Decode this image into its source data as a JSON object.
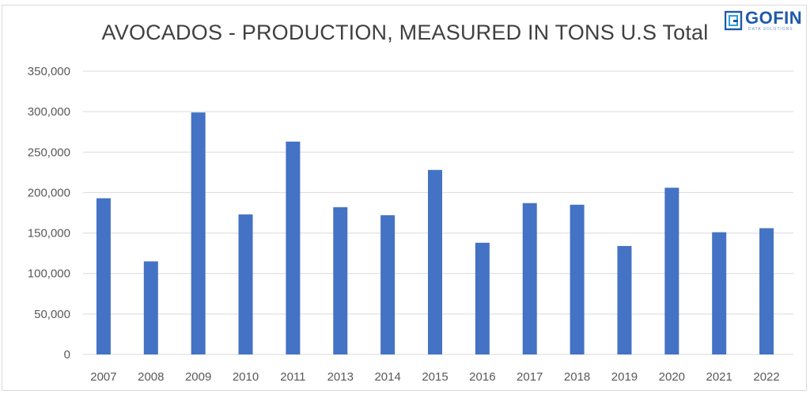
{
  "brand": {
    "logo_text": "GOFIN",
    "logo_sub": "DATA SOLUTIONS",
    "logo_icon": "gofin-logo-icon"
  },
  "colors": {
    "bar": "#4472c4",
    "grid": "#d9d9d9",
    "text": "#595959",
    "title": "#404040"
  },
  "chart_data": {
    "type": "bar",
    "title": "AVOCADOS - PRODUCTION, MEASURED IN TONS U.S Total",
    "xlabel": "",
    "ylabel": "",
    "categories": [
      "2007",
      "2008",
      "2009",
      "2010",
      "2011",
      "2013",
      "2014",
      "2015",
      "2016",
      "2017",
      "2018",
      "2019",
      "2020",
      "2021",
      "2022"
    ],
    "values": [
      193000,
      115000,
      299000,
      173000,
      263000,
      182000,
      172000,
      228000,
      138000,
      187000,
      185000,
      134000,
      206000,
      151000,
      156000
    ],
    "ylim": [
      0,
      350000
    ],
    "yticks": [
      0,
      50000,
      100000,
      150000,
      200000,
      250000,
      300000,
      350000
    ],
    "ytick_labels": [
      "0",
      "50,000",
      "100,000",
      "150,000",
      "200,000",
      "250,000",
      "300,000",
      "350,000"
    ],
    "grid": true,
    "legend": "none"
  }
}
